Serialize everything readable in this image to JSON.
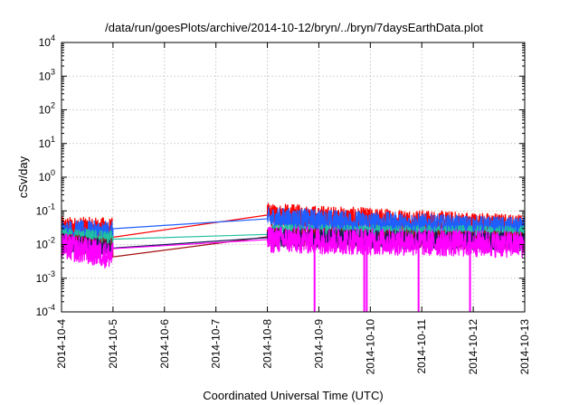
{
  "chart_data": {
    "type": "line",
    "title": "/data/run/goesPlots/archive/2014-10-12/bryn/../bryn/7daysEarthData.plot",
    "xlabel": "Coordinated Universal Time (UTC)",
    "ylabel": "cSv/day",
    "y_scale": "log",
    "ylim": [
      0.0001,
      10000
    ],
    "xlim": [
      "2014-10-04",
      "2014-10-13"
    ],
    "x_ticks": [
      "2014-10-4",
      "2014-10-5",
      "2014-10-6",
      "2014-10-7",
      "2014-10-8",
      "2014-10-9",
      "2014-10-10",
      "2014-10-11",
      "2014-10-12",
      "2014-10-13"
    ],
    "y_ticks": [
      {
        "value": 0.0001,
        "base": "10",
        "exp": "-4"
      },
      {
        "value": 0.001,
        "base": "10",
        "exp": "-3"
      },
      {
        "value": 0.01,
        "base": "10",
        "exp": "-2"
      },
      {
        "value": 0.1,
        "base": "10",
        "exp": "-1"
      },
      {
        "value": 1,
        "base": "10",
        "exp": "0"
      },
      {
        "value": 10,
        "base": "10",
        "exp": "1"
      },
      {
        "value": 100,
        "base": "10",
        "exp": "2"
      },
      {
        "value": 1000,
        "base": "10",
        "exp": "3"
      },
      {
        "value": 10000,
        "base": "10",
        "exp": "4"
      }
    ],
    "grid": true,
    "gap": {
      "start": "2014-10-05",
      "end": "2014-10-08"
    },
    "series": [
      {
        "color": "#ff0000",
        "values": [
          {
            "x": "2014-10-04",
            "y": 0.03
          },
          {
            "x": "2014-10-05",
            "y": 0.028
          },
          {
            "x": "2014-10-08",
            "y": 0.075
          },
          {
            "x": "2014-10-13",
            "y": 0.035
          }
        ],
        "noise": 0.7
      },
      {
        "color": "#1f5fff",
        "values": [
          {
            "x": "2014-10-04",
            "y": 0.024
          },
          {
            "x": "2014-10-05",
            "y": 0.022
          },
          {
            "x": "2014-10-08",
            "y": 0.058
          },
          {
            "x": "2014-10-13",
            "y": 0.028
          }
        ],
        "noise": 0.7
      },
      {
        "color": "#20c0a0",
        "values": [
          {
            "x": "2014-10-04",
            "y": 0.016
          },
          {
            "x": "2014-10-05",
            "y": 0.013
          },
          {
            "x": "2014-10-08",
            "y": 0.02
          },
          {
            "x": "2014-10-13",
            "y": 0.018
          }
        ],
        "noise": 0.6
      },
      {
        "color": "#a01010",
        "values": [
          {
            "x": "2014-10-04",
            "y": 0.012
          },
          {
            "x": "2014-10-05",
            "y": 0.008
          },
          {
            "x": "2014-10-08",
            "y": 0.017
          },
          {
            "x": "2014-10-13",
            "y": 0.013
          }
        ],
        "noise": 0.55
      },
      {
        "color": "#1a1a5a",
        "values": [
          {
            "x": "2014-10-04",
            "y": 0.011
          },
          {
            "x": "2014-10-05",
            "y": 0.007
          },
          {
            "x": "2014-10-08",
            "y": 0.016
          },
          {
            "x": "2014-10-13",
            "y": 0.012
          }
        ],
        "noise": 0.55
      },
      {
        "color": "#ff00ff",
        "values": [
          {
            "x": "2014-10-04",
            "y": 0.009
          },
          {
            "x": "2014-10-05",
            "y": 0.0045
          },
          {
            "x": "2014-10-08",
            "y": 0.014
          },
          {
            "x": "2014-10-13",
            "y": 0.01
          }
        ],
        "noise": 0.8
      }
    ],
    "dropouts": [
      {
        "x": "2014-10-08T22:00",
        "y": 0.0001
      },
      {
        "x": "2014-10-09T21:10",
        "y": 0.0001
      },
      {
        "x": "2014-10-09T22:20",
        "y": 0.0001
      },
      {
        "x": "2014-10-10T22:30",
        "y": 0.0001
      },
      {
        "x": "2014-10-11T22:30",
        "y": 0.0001
      }
    ]
  }
}
